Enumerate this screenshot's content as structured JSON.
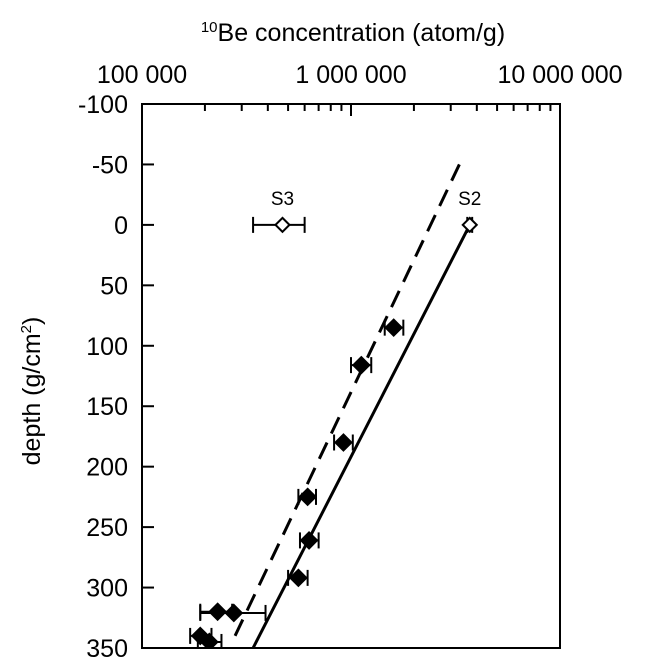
{
  "chart_data": {
    "type": "scatter",
    "title": "",
    "xlabel": {
      "superscript": "10",
      "text": "Be concentration (atom/g)"
    },
    "ylabel": {
      "text": "depth (g/cm",
      "superscript": "2",
      "suffix": ")"
    },
    "x_scale": "log",
    "x_axis_position": "top",
    "xlim": [
      100000,
      10000000
    ],
    "x_ticks": [
      100000,
      1000000,
      10000000
    ],
    "x_tick_labels": [
      "100 000",
      "1 000 000",
      "10 000 000"
    ],
    "ylim": [
      -100,
      350
    ],
    "y_inverted": true,
    "y_ticks": [
      -100,
      -50,
      0,
      50,
      100,
      150,
      200,
      250,
      300,
      350
    ],
    "y_tick_labels": [
      "-100",
      "-50",
      "0",
      "50",
      "100",
      "150",
      "200",
      "250",
      "300",
      "350"
    ],
    "grid": false,
    "series": [
      {
        "marker": "filled-diamond",
        "points": [
          {
            "x": 1600000,
            "y": 85,
            "xerr_low": 1450000,
            "xerr_high": 1780000
          },
          {
            "x": 1120000,
            "y": 116,
            "xerr_low": 1000000,
            "xerr_high": 1250000
          },
          {
            "x": 920000,
            "y": 180,
            "xerr_low": 830000,
            "xerr_high": 1020000
          },
          {
            "x": 620000,
            "y": 225,
            "xerr_low": 560000,
            "xerr_high": 680000
          },
          {
            "x": 630000,
            "y": 261,
            "xerr_low": 570000,
            "xerr_high": 700000
          },
          {
            "x": 560000,
            "y": 292,
            "xerr_low": 500000,
            "xerr_high": 620000
          },
          {
            "x": 230000,
            "y": 320,
            "xerr_low": 190000,
            "xerr_high": 270000
          },
          {
            "x": 275000,
            "y": 321,
            "xerr_low": 190000,
            "xerr_high": 390000
          },
          {
            "x": 190000,
            "y": 340,
            "xerr_low": 170000,
            "xerr_high": 215000
          },
          {
            "x": 210000,
            "y": 345,
            "xerr_low": 185000,
            "xerr_high": 240000
          }
        ]
      },
      {
        "marker": "open-diamond",
        "points": [
          {
            "label": "S3",
            "x": 470000,
            "y": 0,
            "xerr_low": 340000,
            "xerr_high": 600000
          },
          {
            "label": "S2",
            "x": 3700000,
            "y": 0,
            "xerr_low": 3600000,
            "xerr_high": 3800000
          }
        ]
      }
    ],
    "fit_lines": [
      {
        "style": "solid",
        "points": [
          [
            3700000,
            0
          ],
          [
            340000,
            350
          ]
        ]
      },
      {
        "style": "dashed",
        "points": [
          [
            3300000,
            -50
          ],
          [
            270000,
            345
          ]
        ]
      }
    ]
  }
}
